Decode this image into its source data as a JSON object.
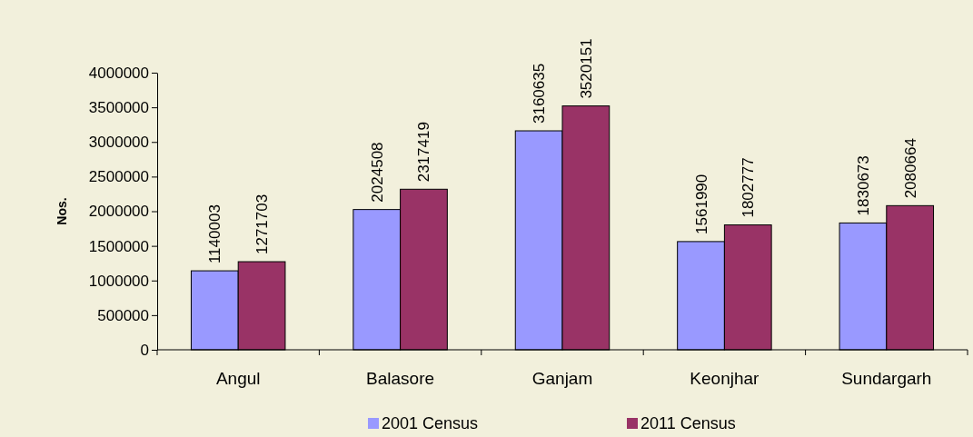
{
  "chart_data": {
    "type": "bar",
    "ylabel": "Nos.",
    "categories": [
      "Angul",
      "Balasore",
      "Ganjam",
      "Keonjhar",
      "Sundargarh"
    ],
    "series": [
      {
        "name": "2001 Census",
        "color": "#9999ff",
        "values": [
          1140003,
          2024508,
          3160635,
          1561990,
          1830673
        ]
      },
      {
        "name": "2011 Census",
        "color": "#993366",
        "values": [
          1271703,
          2317419,
          3520151,
          1802777,
          2080664
        ]
      }
    ],
    "ylim": [
      0,
      4000000
    ],
    "yticks": [
      0,
      500000,
      1000000,
      1500000,
      2000000,
      2500000,
      3000000,
      3500000,
      4000000
    ],
    "data_labels": true,
    "legend": "bottom"
  }
}
